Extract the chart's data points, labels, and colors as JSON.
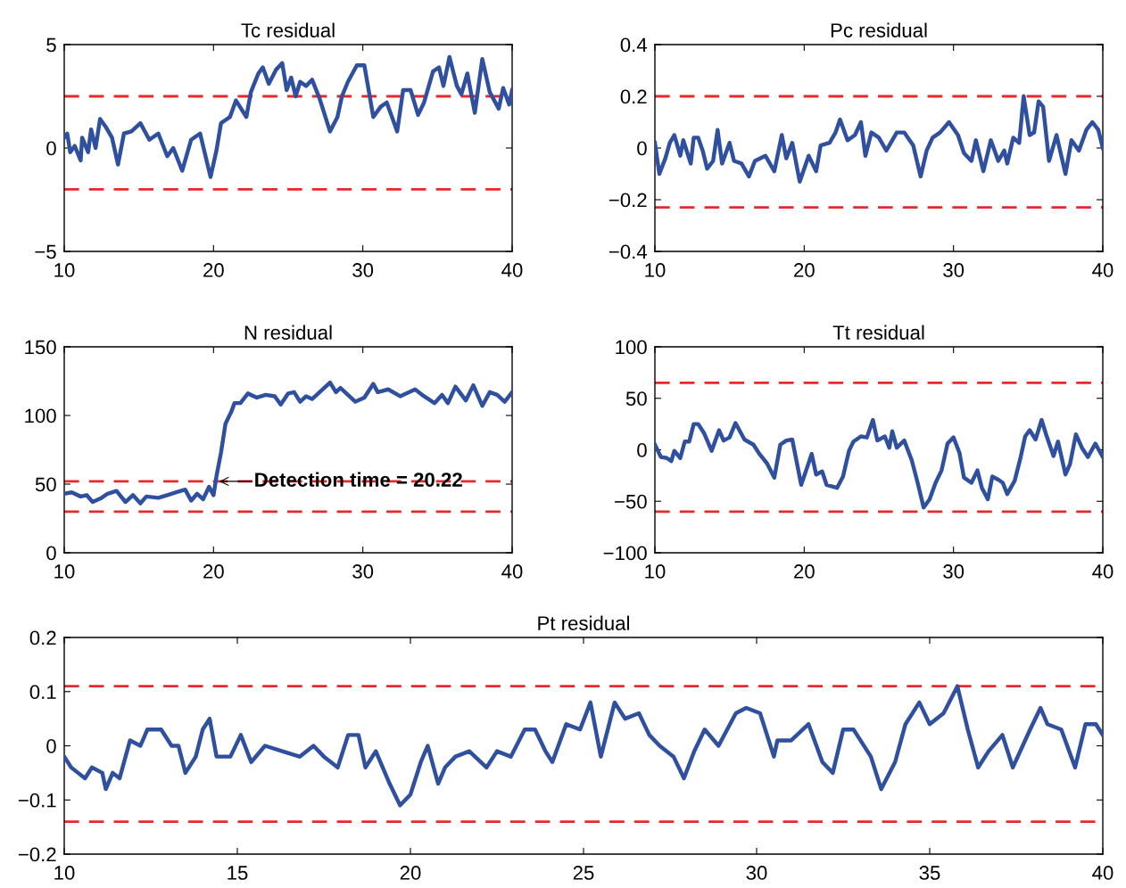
{
  "chart_data": [
    {
      "type": "line",
      "title": "Tc residual",
      "xlim": [
        10,
        40
      ],
      "xticks": [
        10,
        20,
        30,
        40
      ],
      "ylim": [
        -5,
        5
      ],
      "yticks": [
        -5,
        0,
        5
      ],
      "grid": false,
      "marker": "none",
      "line_style": "solid",
      "ref_lines": [
        {
          "axis": "y",
          "value": 2.5,
          "color": "#e8282b",
          "line_style": "dashed"
        },
        {
          "axis": "y",
          "value": -2,
          "color": "#e8282b",
          "line_style": "dashed"
        }
      ],
      "series": [
        {
          "color": "#2f4f9f",
          "x": [
            10,
            10.2,
            10.4,
            10.7,
            11.1,
            11.2,
            11.6,
            11.8,
            12.1,
            12.4,
            12.8,
            13.2,
            13.6,
            14.0,
            14.5,
            15.1,
            15.7,
            16.3,
            16.9,
            17.3,
            17.9,
            18.5,
            19.1,
            19.8,
            20.2,
            20.5,
            21.1,
            21.5,
            22.2,
            22.5,
            23.0,
            23.3,
            23.7,
            24.2,
            24.6,
            24.9,
            25.2,
            25.5,
            25.8,
            26.2,
            26.6,
            27.1,
            27.8,
            28.3,
            28.6,
            29.0,
            29.6,
            30.1,
            30.7,
            31.2,
            31.6,
            32.0,
            32.3,
            32.7,
            33.2,
            33.7,
            34.1,
            34.7,
            35.1,
            35.4,
            35.8,
            36.3,
            36.6,
            37.0,
            37.5,
            38.0,
            38.5,
            39.1,
            39.4,
            39.8,
            40.0
          ],
          "values": [
            0.5,
            0.7,
            -0.2,
            0.1,
            -0.6,
            0.5,
            -0.2,
            0.9,
            0.0,
            1.4,
            1.0,
            0.5,
            -0.8,
            0.7,
            0.8,
            1.2,
            0.4,
            0.7,
            -0.4,
            0.0,
            -1.1,
            0.4,
            0.7,
            -1.4,
            -0.1,
            1.2,
            1.5,
            2.3,
            1.5,
            2.7,
            3.6,
            3.9,
            3.1,
            3.8,
            4.1,
            2.8,
            3.4,
            2.5,
            3.2,
            3.0,
            3.3,
            2.4,
            0.8,
            1.5,
            2.5,
            3.2,
            4.0,
            4.0,
            1.5,
            2.0,
            2.2,
            1.4,
            0.8,
            2.8,
            2.8,
            1.6,
            2.2,
            3.7,
            3.9,
            3.0,
            4.4,
            3.0,
            2.6,
            3.6,
            1.7,
            4.3,
            2.7,
            1.9,
            2.9,
            2.1,
            2.8
          ]
        }
      ]
    },
    {
      "type": "line",
      "title": "Pc residual",
      "xlim": [
        10,
        40
      ],
      "xticks": [
        10,
        20,
        30,
        40
      ],
      "ylim": [
        -0.4,
        0.4
      ],
      "yticks": [
        -0.4,
        -0.2,
        0,
        0.2,
        0.4
      ],
      "grid": false,
      "marker": "none",
      "line_style": "solid",
      "ref_lines": [
        {
          "axis": "y",
          "value": 0.2,
          "color": "#e8282b",
          "line_style": "dashed"
        },
        {
          "axis": "y",
          "value": -0.23,
          "color": "#e8282b",
          "line_style": "dashed"
        }
      ],
      "series": [
        {
          "color": "#2f4f9f",
          "x": [
            10,
            10.3,
            10.7,
            11.0,
            11.3,
            11.7,
            11.9,
            12.4,
            12.6,
            12.9,
            13.2,
            13.5,
            13.9,
            14.2,
            14.5,
            15.0,
            15.3,
            15.8,
            16.3,
            16.7,
            17.4,
            18.0,
            18.5,
            18.8,
            19.2,
            19.7,
            20.3,
            20.8,
            21.1,
            21.7,
            22.1,
            22.4,
            22.9,
            23.4,
            23.8,
            24.1,
            24.5,
            25.0,
            25.5,
            26.2,
            26.7,
            27.3,
            27.8,
            28.2,
            28.6,
            29.1,
            29.7,
            30.3,
            30.7,
            31.2,
            31.5,
            32.0,
            32.5,
            33.0,
            33.4,
            33.6,
            34.0,
            34.4,
            34.7,
            35.1,
            35.4,
            35.7,
            36.0,
            36.4,
            36.9,
            37.5,
            37.9,
            38.4,
            38.9,
            39.3,
            39.7,
            40.0
          ],
          "values": [
            0.02,
            -0.1,
            -0.04,
            0.02,
            0.05,
            -0.03,
            0.03,
            -0.06,
            0.04,
            0.04,
            -0.01,
            -0.08,
            -0.05,
            0.07,
            -0.06,
            0.02,
            -0.05,
            -0.06,
            -0.11,
            -0.05,
            -0.03,
            -0.09,
            0.05,
            -0.04,
            0.02,
            -0.13,
            -0.03,
            -0.09,
            0.01,
            0.02,
            0.06,
            0.11,
            0.03,
            0.05,
            0.1,
            -0.03,
            0.06,
            0.04,
            -0.01,
            0.06,
            0.06,
            0.01,
            -0.11,
            -0.01,
            0.04,
            0.06,
            0.1,
            0.05,
            -0.02,
            -0.05,
            0.03,
            -0.09,
            0.03,
            -0.05,
            -0.01,
            -0.06,
            0.04,
            0.02,
            0.2,
            0.05,
            0.06,
            0.18,
            0.16,
            -0.05,
            0.05,
            -0.1,
            0.03,
            -0.01,
            0.07,
            0.1,
            0.07,
            0.0
          ]
        }
      ]
    },
    {
      "type": "line",
      "title": "N residual",
      "xlim": [
        10,
        40
      ],
      "xticks": [
        10,
        20,
        30,
        40
      ],
      "ylim": [
        0,
        150
      ],
      "yticks": [
        0,
        50,
        100,
        150
      ],
      "grid": false,
      "marker": "none",
      "line_style": "solid",
      "ref_lines": [
        {
          "axis": "y",
          "value": 52,
          "color": "#e8282b",
          "line_style": "dashed"
        },
        {
          "axis": "y",
          "value": 30,
          "color": "#e8282b",
          "line_style": "dashed"
        }
      ],
      "annotations": [
        {
          "text": "Detection time = 20.22",
          "x": 20.22,
          "y": 52
        }
      ],
      "series": [
        {
          "color": "#2f4f9f",
          "x": [
            10,
            10.5,
            11.1,
            11.5,
            11.9,
            12.5,
            12.9,
            13.5,
            14.1,
            14.6,
            15.1,
            15.5,
            16.3,
            16.9,
            17.5,
            18.1,
            18.5,
            18.9,
            19.3,
            19.7,
            20.0,
            20.2,
            20.5,
            20.8,
            21.2,
            21.4,
            21.8,
            22.3,
            22.9,
            23.5,
            24.1,
            24.5,
            25.0,
            25.4,
            25.8,
            26.2,
            26.6,
            27.2,
            27.8,
            28.2,
            28.5,
            29.0,
            29.5,
            30.1,
            30.7,
            31.0,
            31.7,
            32.5,
            33.5,
            34.1,
            34.8,
            35.3,
            35.7,
            36.2,
            36.9,
            37.4,
            38.0,
            38.5,
            39.0,
            39.5,
            40.0
          ],
          "values": [
            43,
            44,
            41,
            42,
            37,
            40,
            43,
            45,
            37,
            42,
            36,
            41,
            40,
            42,
            44,
            46,
            38,
            43,
            39,
            48,
            42,
            56,
            73,
            94,
            103,
            109,
            109,
            116,
            113,
            115,
            114,
            108,
            116,
            117,
            110,
            114,
            112,
            118,
            124,
            117,
            120,
            115,
            110,
            113,
            123,
            117,
            119,
            114,
            119,
            114,
            109,
            115,
            109,
            121,
            111,
            122,
            107,
            117,
            115,
            110,
            117
          ]
        }
      ]
    },
    {
      "type": "line",
      "title": "Tt residual",
      "xlim": [
        10,
        40
      ],
      "xticks": [
        10,
        20,
        30,
        40
      ],
      "ylim": [
        -100,
        100
      ],
      "yticks": [
        -100,
        -50,
        0,
        50,
        100
      ],
      "grid": false,
      "marker": "none",
      "line_style": "solid",
      "ref_lines": [
        {
          "axis": "y",
          "value": 65,
          "color": "#e8282b",
          "line_style": "dashed"
        },
        {
          "axis": "y",
          "value": -60,
          "color": "#e8282b",
          "line_style": "dashed"
        }
      ],
      "series": [
        {
          "color": "#2f4f9f",
          "x": [
            10,
            10.4,
            10.8,
            11.1,
            11.3,
            11.7,
            12.0,
            12.3,
            12.6,
            12.9,
            13.3,
            13.8,
            14.3,
            14.6,
            15.0,
            15.4,
            16.0,
            16.6,
            17.0,
            17.5,
            18.0,
            18.4,
            18.8,
            19.2,
            19.8,
            20.2,
            20.5,
            20.8,
            21.2,
            21.5,
            22.2,
            22.6,
            23.0,
            23.3,
            23.8,
            24.2,
            24.6,
            24.9,
            25.4,
            25.7,
            25.9,
            26.2,
            26.7,
            27.2,
            27.6,
            28.0,
            28.4,
            28.8,
            29.2,
            29.6,
            30.0,
            30.4,
            30.7,
            31.2,
            31.6,
            31.9,
            32.3,
            32.6,
            33.0,
            33.3,
            33.6,
            34.1,
            34.5,
            34.8,
            35.1,
            35.5,
            35.9,
            36.2,
            36.7,
            37.0,
            37.5,
            37.8,
            38.2,
            38.6,
            39.0,
            39.5,
            40.0
          ],
          "values": [
            5,
            -7,
            -8,
            -11,
            -1,
            -8,
            8,
            8,
            25,
            25,
            16,
            -1,
            19,
            9,
            12,
            26,
            10,
            5,
            -4,
            -13,
            -27,
            5,
            9,
            10,
            -34,
            -17,
            -4,
            -24,
            -21,
            -34,
            -37,
            -26,
            -1,
            8,
            13,
            12,
            29,
            9,
            13,
            2,
            18,
            2,
            9,
            -10,
            -32,
            -56,
            -48,
            -32,
            -20,
            6,
            12,
            -3,
            -27,
            -32,
            -20,
            -37,
            -48,
            -26,
            -29,
            -32,
            -43,
            -30,
            -7,
            13,
            19,
            10,
            29,
            15,
            -6,
            8,
            -24,
            -14,
            15,
            2,
            -7,
            6,
            -7
          ]
        }
      ]
    },
    {
      "type": "line",
      "title": "Pt residual",
      "xlim": [
        10,
        40
      ],
      "xticks": [
        10,
        15,
        20,
        25,
        30,
        35,
        40
      ],
      "ylim": [
        -0.2,
        0.2
      ],
      "yticks": [
        -0.2,
        -0.1,
        0,
        0.1,
        0.2
      ],
      "grid": false,
      "marker": "none",
      "line_style": "solid",
      "ref_lines": [
        {
          "axis": "y",
          "value": 0.11,
          "color": "#e8282b",
          "line_style": "dashed"
        },
        {
          "axis": "y",
          "value": -0.14,
          "color": "#e8282b",
          "line_style": "dashed"
        }
      ],
      "series": [
        {
          "color": "#2f4f9f",
          "x": [
            10,
            10.2,
            10.4,
            10.6,
            10.8,
            11.1,
            11.2,
            11.4,
            11.6,
            11.9,
            12.2,
            12.4,
            12.8,
            13.1,
            13.3,
            13.5,
            13.8,
            14.0,
            14.2,
            14.4,
            14.8,
            15.1,
            15.4,
            15.8,
            16.3,
            16.8,
            17.2,
            17.5,
            17.9,
            18.2,
            18.5,
            18.7,
            19.0,
            19.4,
            19.7,
            20.0,
            20.3,
            20.5,
            20.8,
            21.0,
            21.3,
            21.7,
            22.2,
            22.5,
            22.9,
            23.3,
            23.6,
            23.9,
            24.1,
            24.5,
            24.9,
            25.2,
            25.5,
            25.9,
            26.2,
            26.6,
            26.9,
            27.2,
            27.6,
            27.9,
            28.2,
            28.5,
            28.9,
            29.4,
            29.7,
            30.1,
            30.5,
            30.6,
            31.0,
            31.5,
            31.9,
            32.2,
            32.5,
            32.8,
            33.0,
            33.3,
            33.6,
            34.0,
            34.3,
            34.7,
            35.0,
            35.4,
            35.8,
            36.1,
            36.4,
            36.7,
            37.1,
            37.4,
            37.9,
            38.2,
            38.4,
            38.8,
            39.2,
            39.5,
            39.8,
            40.0
          ],
          "values": [
            -0.02,
            -0.04,
            -0.05,
            -0.06,
            -0.04,
            -0.05,
            -0.08,
            -0.05,
            -0.06,
            0.01,
            0.0,
            0.03,
            0.03,
            0.0,
            0.0,
            -0.05,
            -0.02,
            0.03,
            0.05,
            -0.02,
            -0.02,
            0.02,
            -0.03,
            0.0,
            -0.01,
            -0.02,
            0.0,
            -0.02,
            -0.04,
            0.02,
            0.02,
            -0.04,
            -0.01,
            -0.07,
            -0.11,
            -0.09,
            -0.03,
            0.0,
            -0.07,
            -0.04,
            -0.02,
            -0.01,
            -0.04,
            -0.01,
            -0.02,
            0.03,
            0.03,
            -0.01,
            -0.03,
            0.04,
            0.03,
            0.08,
            -0.02,
            0.08,
            0.05,
            0.06,
            0.02,
            0.0,
            -0.02,
            -0.06,
            -0.01,
            0.03,
            0.0,
            0.06,
            0.07,
            0.06,
            -0.02,
            0.01,
            0.01,
            0.04,
            -0.03,
            -0.05,
            0.03,
            0.03,
            0.01,
            -0.02,
            -0.08,
            -0.03,
            0.04,
            0.08,
            0.04,
            0.06,
            0.11,
            0.03,
            -0.04,
            -0.01,
            0.02,
            -0.04,
            0.03,
            0.07,
            0.04,
            0.03,
            -0.04,
            0.04,
            0.04,
            0.02
          ]
        }
      ]
    }
  ]
}
